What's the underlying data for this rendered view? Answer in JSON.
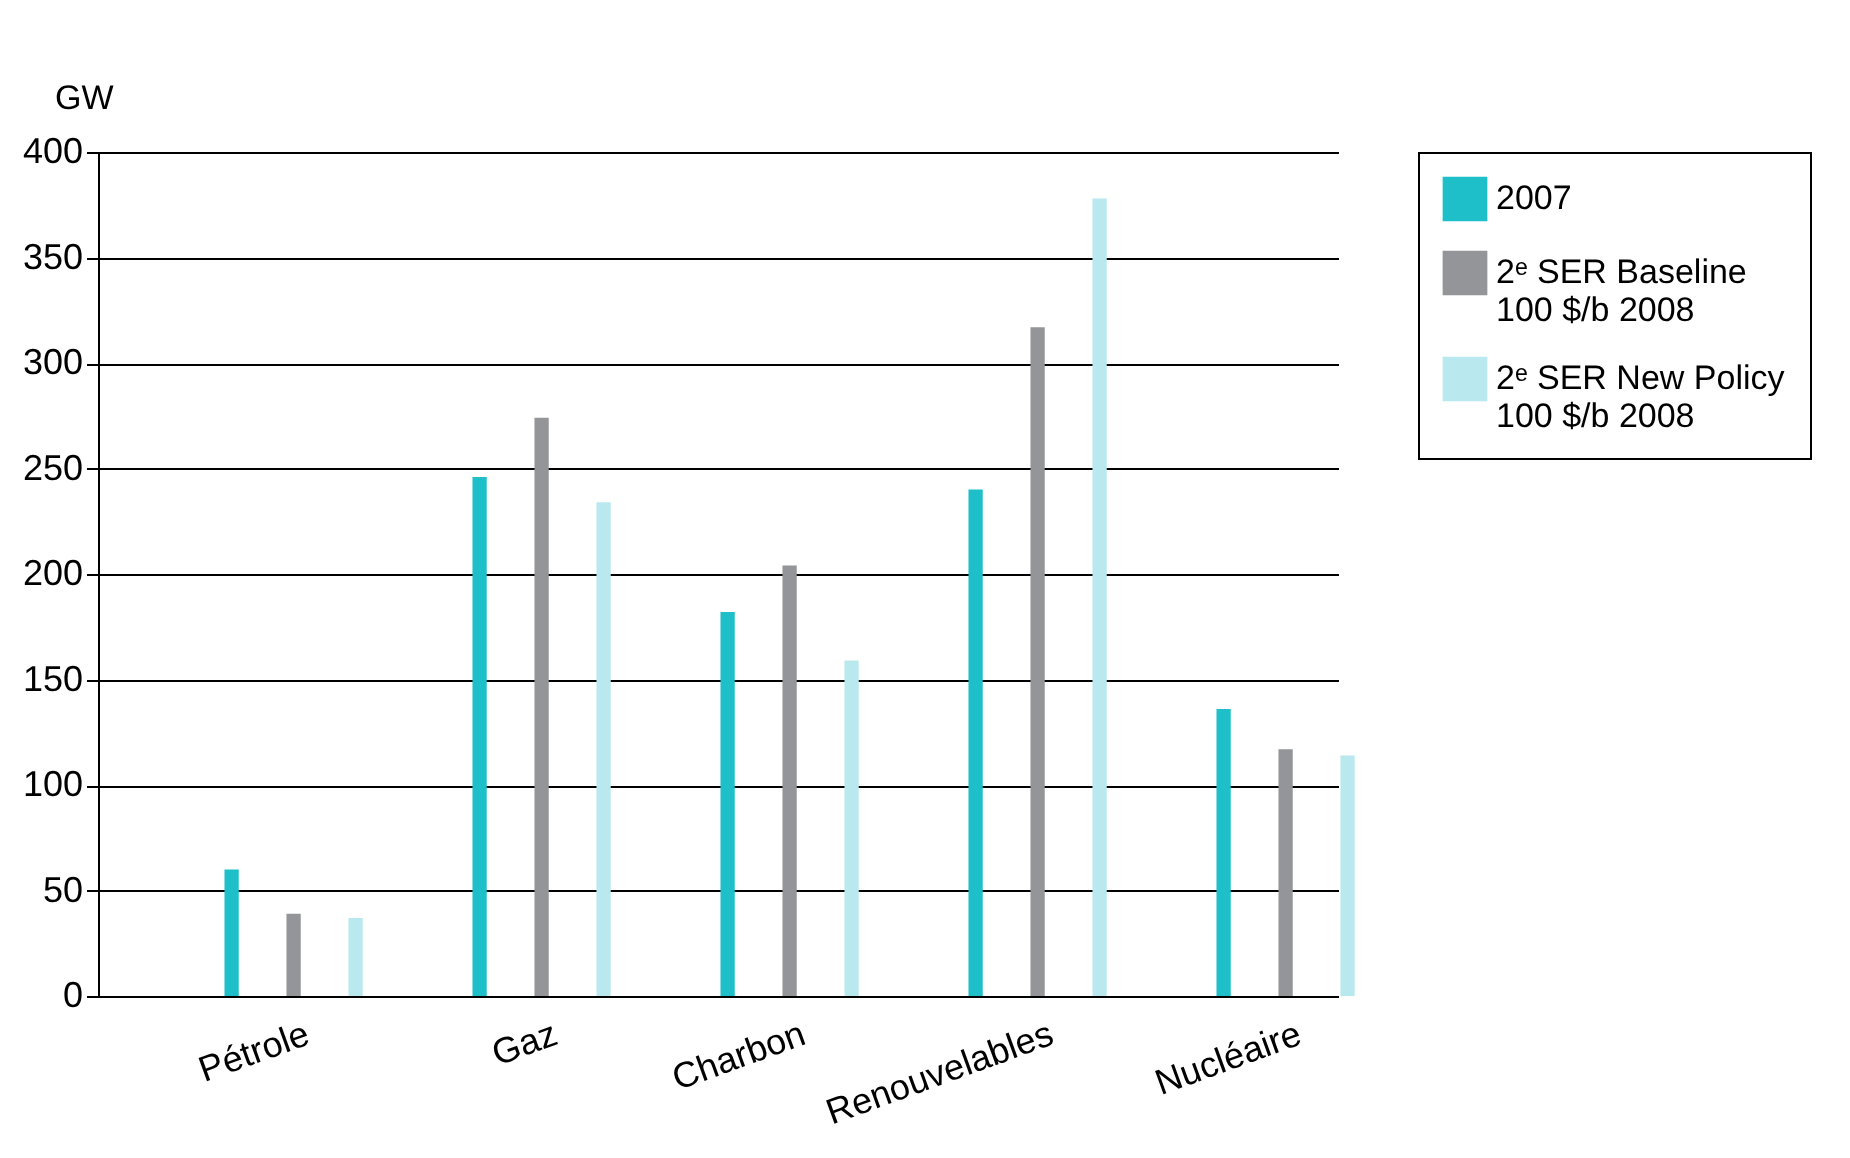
{
  "chart_data": {
    "type": "bar",
    "ylabel": "GW",
    "categories": [
      "Pétrole",
      "Gaz",
      "Charbon",
      "Renouvelables",
      "Nucléaire"
    ],
    "series": [
      {
        "name": "2007",
        "color": "#1fbfca",
        "values": [
          60,
          246,
          182,
          240,
          136
        ]
      },
      {
        "name": "2ᵉ SER Baseline\n100 $/b 2008",
        "color": "#939598",
        "values": [
          39,
          274,
          204,
          317,
          117
        ]
      },
      {
        "name": "2ᵉ SER New Policy\n100 $/b 2008",
        "color": "#b9e9ee",
        "values": [
          37,
          234,
          159,
          378,
          114
        ]
      }
    ],
    "ylim": [
      0,
      400
    ],
    "yticks": [
      0,
      50,
      100,
      150,
      200,
      250,
      300,
      350,
      400
    ],
    "grid": "y",
    "legend": "right"
  }
}
